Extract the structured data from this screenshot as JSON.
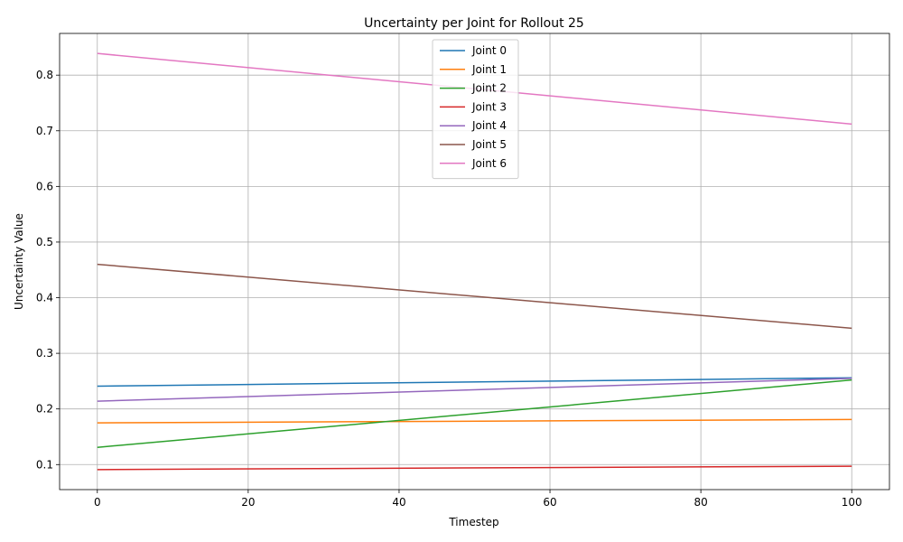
{
  "chart_data": {
    "type": "line",
    "title": "Uncertainty per Joint for Rollout 25",
    "xlabel": "Timestep",
    "ylabel": "Uncertainty Value",
    "xlim": [
      -5,
      105
    ],
    "ylim": [
      0.055,
      0.875
    ],
    "xticks": [
      0,
      20,
      40,
      60,
      80,
      100
    ],
    "yticks": [
      0.1,
      0.2,
      0.3,
      0.4,
      0.5,
      0.6,
      0.7,
      0.8
    ],
    "grid": true,
    "legend_position": "top-center",
    "x": [
      0,
      100
    ],
    "series": [
      {
        "name": "Joint 0",
        "color": "#1f77b4",
        "values": [
          0.241,
          0.256
        ]
      },
      {
        "name": "Joint 1",
        "color": "#ff7f0e",
        "values": [
          0.175,
          0.181
        ]
      },
      {
        "name": "Joint 2",
        "color": "#2ca02c",
        "values": [
          0.131,
          0.252
        ]
      },
      {
        "name": "Joint 3",
        "color": "#d62728",
        "values": [
          0.091,
          0.097
        ]
      },
      {
        "name": "Joint 4",
        "color": "#9467bd",
        "values": [
          0.214,
          0.255
        ]
      },
      {
        "name": "Joint 5",
        "color": "#8c564b",
        "values": [
          0.46,
          0.345
        ]
      },
      {
        "name": "Joint 6",
        "color": "#e377c2",
        "values": [
          0.839,
          0.712
        ]
      }
    ]
  }
}
